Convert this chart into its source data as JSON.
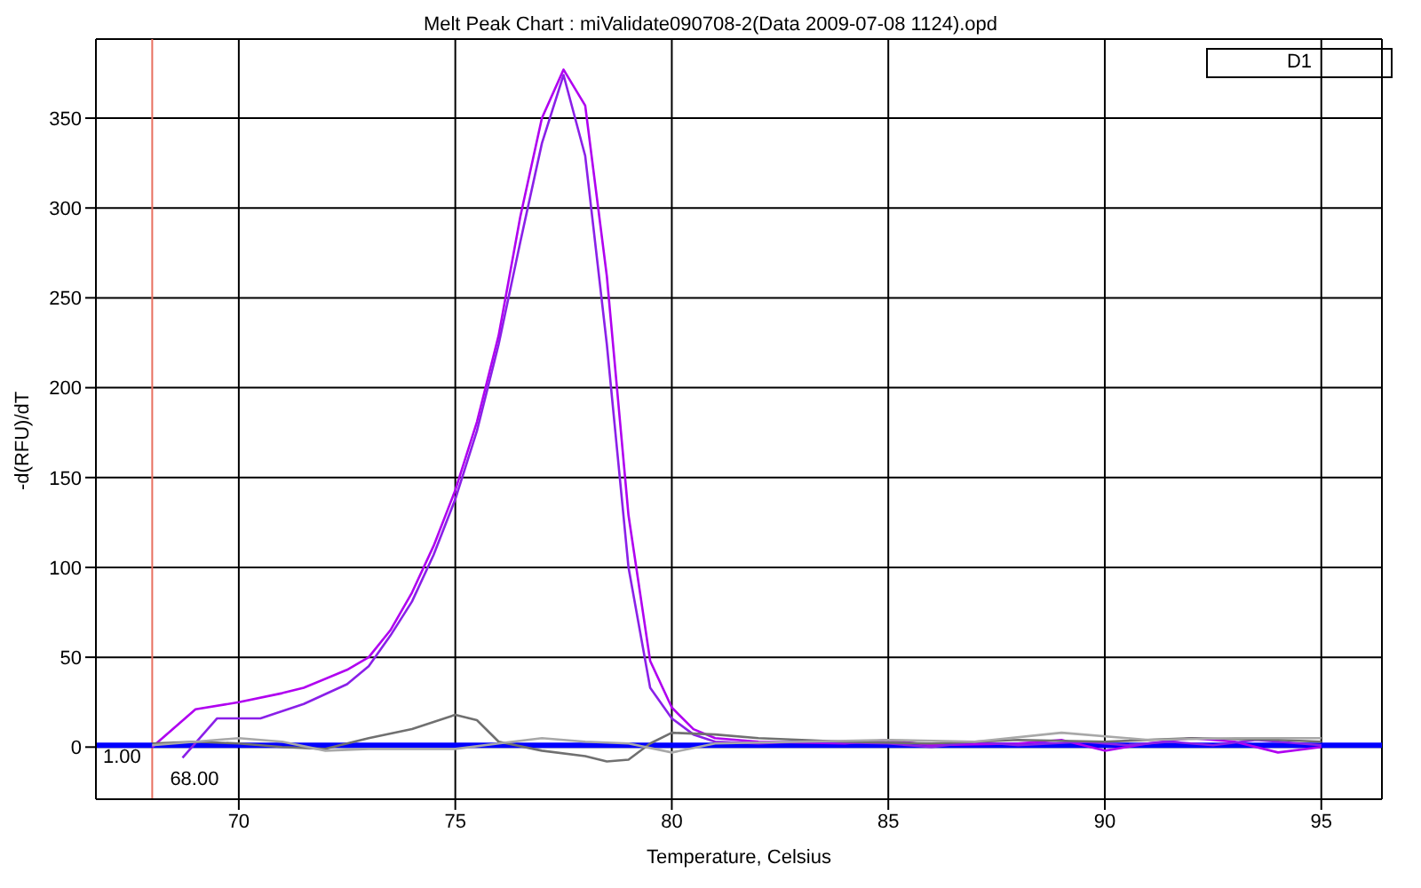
{
  "chart_data": {
    "type": "line",
    "title": "Melt Peak Chart : miValidate090708-2(Data 2009-07-08 1124).opd",
    "xlabel": "Temperature, Celsius",
    "ylabel": "-d(RFU)/dT",
    "annotations": [
      "D1"
    ],
    "series": [
      {
        "color": "#b000f0",
        "x": [
          68,
          69,
          70,
          71,
          71.5,
          72.5,
          73,
          73.5,
          74,
          74.5,
          75,
          75.5,
          76,
          76.5,
          77,
          77.5,
          78,
          78.5,
          79,
          79.5,
          80,
          80.5,
          81,
          82,
          84,
          85,
          86,
          88,
          89,
          90,
          91,
          92,
          93,
          94,
          95
        ],
        "values": [
          0,
          21,
          25,
          30,
          33,
          43,
          50,
          65,
          86,
          112,
          143,
          181,
          229,
          295,
          350,
          377,
          357,
          262,
          129,
          48,
          22,
          10,
          5,
          3,
          2,
          4,
          1,
          2,
          4,
          -2,
          2,
          5,
          3,
          -3,
          0
        ]
      },
      {
        "color": "#8a20e8",
        "x": [
          68.7,
          69.5,
          70.5,
          71.5,
          72.5,
          73,
          73.5,
          74,
          74.5,
          75,
          75.5,
          76,
          76.5,
          77,
          77.5,
          78,
          78.5,
          79,
          79.5,
          80,
          80.5,
          81,
          82,
          83,
          85,
          86,
          87,
          88,
          89.5,
          90.5,
          91.5,
          92.5,
          93.5,
          94.5,
          95
        ],
        "values": [
          -6,
          16,
          16,
          24,
          35,
          45,
          62,
          81,
          107,
          138,
          176,
          224,
          281,
          336,
          374,
          329,
          224,
          100,
          33,
          16,
          7,
          3,
          2,
          3,
          2,
          0,
          3,
          1,
          3,
          1,
          3,
          1,
          4,
          2,
          1
        ]
      },
      {
        "color": "#707070",
        "x": [
          68,
          69,
          70,
          71,
          72,
          73,
          74,
          75,
          75.5,
          76,
          77,
          78,
          78.5,
          79,
          79.5,
          80,
          81,
          82,
          84,
          86,
          88,
          90,
          92,
          94,
          95
        ],
        "values": [
          2,
          3,
          2,
          0,
          -1,
          5,
          10,
          18,
          15,
          3,
          -2,
          -5,
          -8,
          -7,
          2,
          8,
          7,
          5,
          3,
          2,
          4,
          3,
          5,
          4,
          3
        ]
      },
      {
        "color": "#a8a8a8",
        "x": [
          68,
          69,
          70,
          71,
          72,
          73,
          75,
          76,
          77,
          78,
          79,
          80,
          81,
          83,
          85,
          87,
          89,
          91,
          93,
          95
        ],
        "values": [
          1,
          3,
          5,
          3,
          -2,
          -1,
          -1,
          2,
          5,
          3,
          2,
          -3,
          2,
          3,
          4,
          3,
          8,
          4,
          5,
          5
        ]
      }
    ],
    "xlim": [
      66.7,
      96.4
    ],
    "xticks": [
      70,
      75,
      80,
      85,
      90,
      95
    ],
    "ylim": [
      -29,
      394
    ],
    "yticks": [
      0,
      50,
      100,
      150,
      200,
      250,
      300,
      350
    ],
    "grid": true,
    "marker": "none",
    "line_style": "solid",
    "ref_lines": [
      {
        "axis": "x",
        "value": 68,
        "label": "68.00",
        "color": "#e87060"
      },
      {
        "axis": "y",
        "value": 1,
        "label": "1.00",
        "color": "#0000ff"
      }
    ]
  }
}
